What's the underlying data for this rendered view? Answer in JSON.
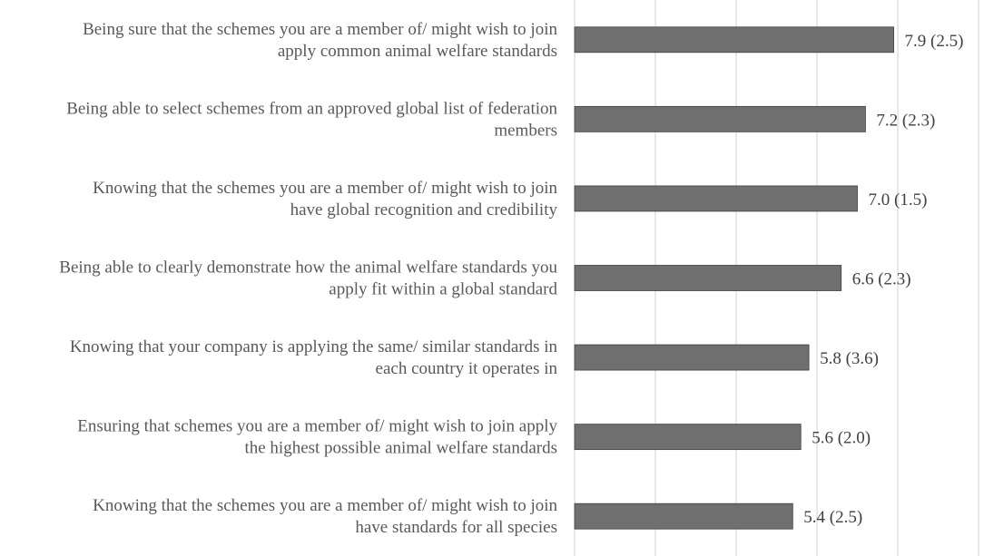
{
  "chart_data": {
    "type": "bar",
    "orientation": "horizontal",
    "categories": [
      "Being sure that the schemes you are a member of/ might wish to join apply common animal welfare standards",
      "Being able to select schemes from an approved global list of federation members",
      "Knowing that the schemes you are a member of/ might wish to join have global recognition and credibility",
      "Being able to clearly demonstrate how the animal welfare standards you apply fit within a global standard",
      "Knowing that your company is applying the same/ similar standards in each country it operates in",
      "Ensuring that schemes you are a member of/ might wish to join apply the highest possible animal welfare standards",
      "Knowing that the schemes you are a member of/ might wish to join have standards for all species"
    ],
    "category_lines": [
      [
        "Being sure that the schemes you are a member of/ might wish to join",
        "apply common animal welfare standards"
      ],
      [
        "Being able to select schemes from an approved global list of federation",
        "members"
      ],
      [
        "Knowing that the schemes you are a member of/ might wish to join",
        "have global recognition and credibility"
      ],
      [
        "Being able to clearly demonstrate how the animal welfare standards you",
        "apply fit within a global standard"
      ],
      [
        "Knowing that your company is applying the same/ similar standards in",
        "each country it operates in"
      ],
      [
        "Ensuring that schemes you are a member of/ might wish to join apply",
        "the highest possible animal welfare standards"
      ],
      [
        "Knowing that the schemes you are a member of/ might wish to join",
        "have standards for all species"
      ]
    ],
    "values": [
      7.9,
      7.2,
      7.0,
      6.6,
      5.8,
      5.6,
      5.4
    ],
    "sd": [
      2.5,
      2.3,
      1.5,
      2.3,
      3.6,
      2.0,
      2.5
    ],
    "data_labels": [
      "7.9 (2.5)",
      "7.2 (2.3)",
      "7.0 (1.5)",
      "6.6 (2.3)",
      "5.8 (3.6)",
      "5.6 (2.0)",
      "5.4 (2.5)"
    ],
    "xlim": [
      0,
      10
    ],
    "grid_step": 2,
    "grid": true,
    "bar_color": "#6f6f6f",
    "grid_color": "#d9d9d9",
    "title": "",
    "xlabel": "",
    "ylabel": ""
  }
}
